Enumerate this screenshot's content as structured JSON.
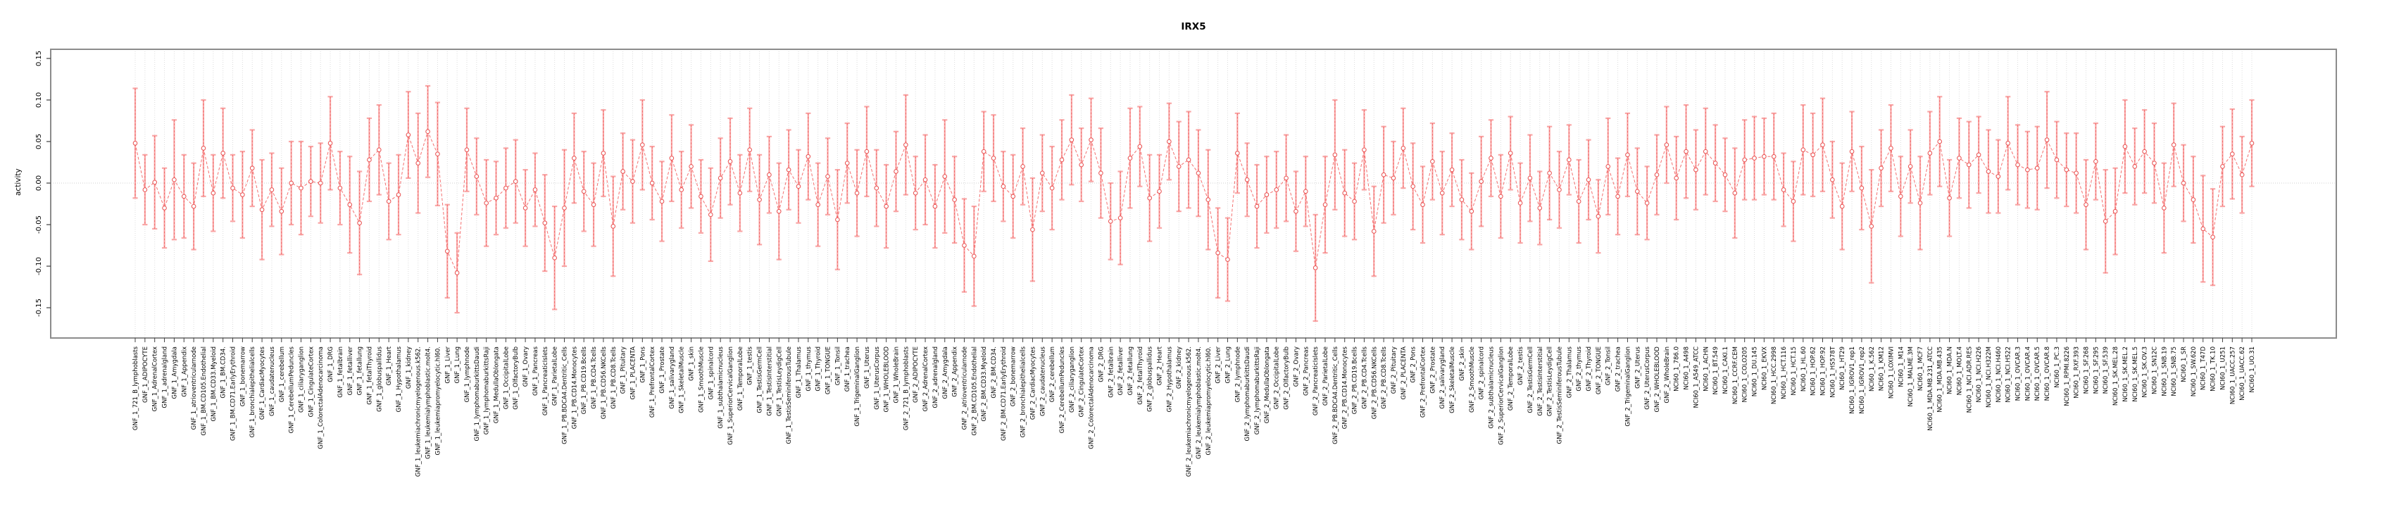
{
  "page": {
    "background": "#ffffff"
  },
  "chart_data": {
    "type": "line",
    "subtype": "error-bar-series",
    "title": "IRX5",
    "ylabel": "activity",
    "xlabel": "",
    "ylim": [
      -0.18,
      0.155
    ],
    "yticks": [
      "0.15",
      "0.10",
      "0.05",
      "0.00",
      "-0.05",
      "-0.10",
      "-0.15"
    ],
    "ytick_values": [
      0.15,
      0.1,
      0.05,
      0.0,
      -0.05,
      -0.1,
      -0.15
    ],
    "grid": {
      "vertical_dotted_per_sample": true,
      "zero_line_dotted": true,
      "legend": "none"
    },
    "colors": {
      "point": "#e94f4f",
      "line": "#f47070",
      "error_bar": "#f9a6a6",
      "error_dash": "#ee5c5c",
      "frame": "#8c8c8c",
      "grid": "#dcdcdc",
      "zero_line": "#cfcfcf",
      "tick": "#404040",
      "text": "#000000"
    },
    "groups": [
      {
        "prefix": "GNF_1_",
        "label_set": "gnf"
      },
      {
        "prefix": "GNF_2_",
        "label_set": "gnf"
      },
      {
        "prefix": "NCI60_1_",
        "label_set": "nci60"
      }
    ],
    "label_sets": {
      "gnf": [
        "721_B_lymphoblasts",
        "ADIPOCYTE",
        "AdrenalCortex",
        "adrenalgland",
        "Amygdala",
        "Appendix",
        "atrioventricularnode",
        "BM.CD105.Endothelial",
        "BM.CD33.Myeloid",
        "BM.CD34.",
        "BM.CD71.EarlyErythroid",
        "bonemarrow",
        "bronchialepithelialcells",
        "CardiacMyocytes",
        "caudatenucleus",
        "cerebellum",
        "CerebellumPeduncles",
        "ciliaryganglion",
        "CingulateCortex",
        "ColorectalAdenocarcinoma",
        "DRG",
        "fetalbrain",
        "fetalliver",
        "fetallung",
        "fetalThyroid",
        "globuspallidus",
        "Heart",
        "Hypothalamus",
        "kidney",
        "leukemiachronicmyelogenous.k562.",
        "leukemialymphoblastic.molt4.",
        "leukemiapromyelocytic.hl60.",
        "Liver",
        "Lung",
        "lymphnode",
        "lymphomaburkittsDaudi",
        "lymphomaburkittsRaji",
        "MedullaOblongata",
        "OccipitalLobe",
        "OlfactoryBulb",
        "Ovary",
        "Pancreas",
        "PancreaticIslets",
        "ParietalLobe",
        "PB.BDCA4.Dentritic_Cells",
        "PB.CD14.Monocytes",
        "PB.CD19.Bcells",
        "PB.CD4.Tcells",
        "PB.CD56.NKCells",
        "PB.CD8.Tcells",
        "Pituitary",
        "PLACENTA",
        "Pons",
        "PrefrontalCortex",
        "Prostate",
        "salivarygland",
        "SkeletalMuscle",
        "skin",
        "SmoothMuscle",
        "spinalcord",
        "subthalamicnucleus",
        "SuperiorCervicalGanglion",
        "TemporalLobe",
        "testis",
        "TestisGermCell",
        "TestisInterstitial",
        "TestisLeydigCell",
        "TestisSeminiferousTubule",
        "Thalamus",
        "thymus",
        "Thyroid",
        "TONGUE",
        "Tonsil",
        "trachea",
        "TrigeminalGanglion",
        "Uterus",
        "UterusCorpus",
        "WHOLEBLOOD",
        "WholeBrain"
      ],
      "nci60": [
        "786.0",
        "A498",
        "A549_ATCC",
        "ACHN",
        "BT.549",
        "CAKI.1",
        "CCRF.CEM",
        "COLO205",
        "DU.145",
        "EKVX",
        "HCC.2998",
        "HCT.116",
        "HCT.15",
        "HL.60",
        "HOP.62",
        "HOP.92",
        "HS578T",
        "HT29",
        "IGROV1_rep1",
        "IGROV1_rep2",
        "K.562",
        "KM12",
        "LOXIMVI",
        "M14",
        "MALME.3M",
        "MCF7",
        "MDA.MB.231_ATCC",
        "MDA.MB.435",
        "MDA.N",
        "MOLT.4",
        "NCI.ADR.RES",
        "NCI.H226",
        "NCI.H322M",
        "NCI.H460",
        "NCI.H522",
        "OVCAR.3",
        "OVCAR.4",
        "OVCAR.5",
        "OVCAR.8",
        "PC.3",
        "RPMI.8226",
        "RXF.393",
        "SF.268",
        "SF.295",
        "SF.539",
        "SK.MEL.28",
        "SK.MEL.2",
        "SK.MEL.5",
        "SK.OV.3",
        "SN12C",
        "SNB.19",
        "SNB.75",
        "SR",
        "SW.620",
        "T47D",
        "TK.10",
        "U251",
        "UACC.257",
        "UACC.62",
        "UO.31"
      ]
    },
    "values": [
      0.048,
      -0.008,
      0.001,
      -0.03,
      0.004,
      -0.016,
      -0.028,
      0.042,
      -0.012,
      0.036,
      -0.006,
      -0.014,
      0.018,
      -0.032,
      -0.008,
      -0.034,
      0.0,
      -0.006,
      0.002,
      0.0,
      0.048,
      -0.006,
      -0.026,
      -0.048,
      0.028,
      0.04,
      -0.022,
      -0.014,
      0.058,
      0.024,
      0.062,
      0.035,
      -0.082,
      -0.108,
      0.04,
      0.008,
      -0.024,
      -0.018,
      -0.006,
      0.002,
      -0.03,
      -0.008,
      -0.048,
      -0.09,
      -0.03,
      0.03,
      -0.01,
      -0.026,
      0.036,
      -0.052,
      0.014,
      0.002,
      0.046,
      0.0,
      -0.022,
      0.03,
      -0.008,
      0.02,
      -0.016,
      -0.038,
      0.006,
      0.026,
      -0.012,
      0.04,
      -0.02,
      0.01,
      -0.034,
      0.016,
      -0.004,
      0.032,
      -0.026,
      0.008,
      -0.044,
      0.024,
      -0.012,
      0.038,
      -0.006,
      -0.028,
      0.014,
      0.046,
      -0.012,
      0.004,
      -0.028,
      0.008,
      -0.02,
      -0.075,
      -0.088,
      0.038,
      0.03,
      -0.004,
      -0.016,
      0.02,
      -0.056,
      0.012,
      -0.006,
      0.028,
      0.052,
      0.022,
      0.052,
      0.012,
      -0.046,
      -0.042,
      0.03,
      0.044,
      -0.018,
      -0.01,
      0.05,
      0.02,
      0.028,
      0.012,
      -0.02,
      -0.084,
      -0.092,
      0.036,
      0.004,
      -0.028,
      -0.014,
      -0.008,
      0.006,
      -0.034,
      -0.01,
      -0.102,
      -0.026,
      0.034,
      -0.012,
      -0.022,
      0.04,
      -0.058,
      0.01,
      0.006,
      0.042,
      -0.004,
      -0.026,
      0.026,
      -0.012,
      0.016,
      -0.02,
      -0.034,
      0.002,
      0.03,
      -0.016,
      0.036,
      -0.024,
      0.006,
      -0.03,
      0.012,
      -0.008,
      0.028,
      -0.022,
      0.004,
      -0.04,
      0.02,
      -0.016,
      0.034,
      -0.01,
      -0.024,
      0.01,
      0.046,
      0.006,
      0.038,
      0.016,
      0.038,
      0.024,
      0.01,
      -0.012,
      0.028,
      0.03,
      0.032,
      0.032,
      -0.008,
      -0.022,
      0.04,
      0.034,
      0.046,
      0.004,
      -0.028,
      0.038,
      -0.006,
      -0.052,
      0.018,
      0.042,
      -0.016,
      0.02,
      -0.024,
      0.036,
      0.05,
      -0.018,
      0.03,
      0.022,
      0.034,
      0.014,
      0.008,
      0.048,
      0.022,
      0.016,
      0.018,
      0.052,
      0.028,
      0.016,
      0.012,
      -0.026,
      0.026,
      -0.046,
      -0.034,
      0.044,
      0.02,
      0.038,
      0.024,
      -0.03,
      0.046,
      0.0,
      -0.02,
      -0.055,
      -0.065,
      0.02,
      0.035,
      0.01,
      0.048
    ],
    "errors": [
      0.066,
      0.042,
      0.056,
      0.048,
      0.072,
      0.05,
      0.052,
      0.058,
      0.046,
      0.054,
      0.04,
      0.052,
      0.046,
      0.06,
      0.044,
      0.052,
      0.05,
      0.056,
      0.042,
      0.048,
      0.056,
      0.044,
      0.058,
      0.062,
      0.05,
      0.054,
      0.046,
      0.048,
      0.052,
      0.06,
      0.055,
      0.062,
      0.056,
      0.048,
      0.05,
      0.046,
      0.052,
      0.044,
      0.048,
      0.05,
      0.046,
      0.044,
      0.058,
      0.062,
      0.07,
      0.054,
      0.048,
      0.05,
      0.052,
      0.06,
      0.046,
      0.05,
      0.054,
      0.044,
      0.048,
      0.052,
      0.046,
      0.05,
      0.044,
      0.056,
      0.048,
      0.052,
      0.046,
      0.05,
      0.054,
      0.046,
      0.058,
      0.048,
      0.044,
      0.052,
      0.05,
      0.046,
      0.06,
      0.048,
      0.052,
      0.054,
      0.046,
      0.05,
      0.048,
      0.06,
      0.044,
      0.054,
      0.05,
      0.068,
      0.052,
      0.056,
      0.06,
      0.048,
      0.052,
      0.042,
      0.05,
      0.046,
      0.062,
      0.046,
      0.05,
      0.048,
      0.054,
      0.044,
      0.05,
      0.054,
      0.046,
      0.056,
      0.06,
      0.048,
      0.052,
      0.044,
      0.046,
      0.054,
      0.058,
      0.052,
      0.06,
      0.054,
      0.05,
      0.048,
      0.044,
      0.05,
      0.046,
      0.046,
      0.052,
      0.048,
      0.042,
      0.064,
      0.058,
      0.066,
      0.052,
      0.046,
      0.048,
      0.054,
      0.058,
      0.044,
      0.048,
      0.052,
      0.046,
      0.046,
      0.05,
      0.044,
      0.048,
      0.046,
      0.054,
      0.046,
      0.05,
      0.044,
      0.048,
      0.052,
      0.044,
      0.056,
      0.046,
      0.042,
      0.05,
      0.048,
      0.044,
      0.058,
      0.046,
      0.05,
      0.052,
      0.044,
      0.048,
      0.046,
      0.05,
      0.056,
      0.048,
      0.052,
      0.046,
      0.044,
      0.054,
      0.048,
      0.05,
      0.046,
      0.052,
      0.044,
      0.048,
      0.054,
      0.05,
      0.056,
      0.046,
      0.052,
      0.048,
      0.05,
      0.068,
      0.046,
      0.052,
      0.048,
      0.044,
      0.056,
      0.05,
      0.054,
      0.046,
      0.048,
      0.052,
      0.046,
      0.05,
      0.044,
      0.056,
      0.048,
      0.046,
      0.05,
      0.058,
      0.046,
      0.044,
      0.048,
      0.054,
      0.046,
      0.062,
      0.052,
      0.056,
      0.046,
      0.05,
      0.048,
      0.054,
      0.05,
      0.046,
      0.052,
      0.064,
      0.058,
      0.048,
      0.054,
      0.046,
      0.052
    ]
  }
}
